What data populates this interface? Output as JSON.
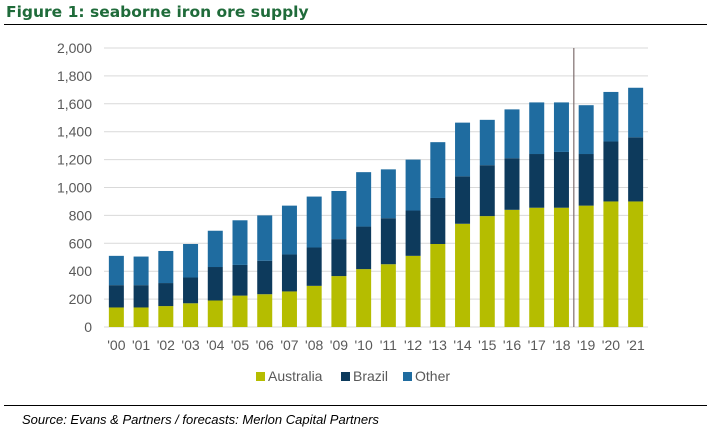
{
  "figure": {
    "title": "Figure 1: seaborne iron ore supply",
    "source": "Source: Evans & Partners / forecasts: Merlon Capital Partners"
  },
  "chart_data": {
    "type": "bar",
    "stacked": true,
    "categories": [
      "'00",
      "'01",
      "'02",
      "'03",
      "'04",
      "'05",
      "'06",
      "'07",
      "'08",
      "'09",
      "'10",
      "'11",
      "'12",
      "'13",
      "'14",
      "'15",
      "'16",
      "'17",
      "'18",
      "'19",
      "'20",
      "'21"
    ],
    "series": [
      {
        "name": "Australia",
        "color": "#b5bd00",
        "values": [
          140,
          140,
          150,
          170,
          190,
          225,
          235,
          255,
          295,
          365,
          415,
          450,
          510,
          595,
          740,
          795,
          840,
          855,
          855,
          870,
          900,
          900
        ]
      },
      {
        "name": "Brazil",
        "color": "#0d3a5c",
        "values": [
          160,
          160,
          165,
          185,
          240,
          220,
          240,
          265,
          275,
          265,
          305,
          330,
          325,
          330,
          340,
          365,
          370,
          385,
          400,
          370,
          430,
          460
        ]
      },
      {
        "name": "Other",
        "color": "#1f6ca0",
        "values": [
          210,
          205,
          230,
          240,
          260,
          320,
          325,
          350,
          365,
          345,
          390,
          350,
          365,
          400,
          385,
          325,
          350,
          370,
          355,
          350,
          355,
          355
        ]
      }
    ],
    "y_ticks": [
      "0",
      "200",
      "400",
      "600",
      "800",
      "1,000",
      "1,200",
      "1,400",
      "1,600",
      "1,800",
      "2,000"
    ],
    "ylim": [
      0,
      2000
    ],
    "grid": true,
    "forecast_divider_after": "'18",
    "legend_position": "bottom"
  }
}
